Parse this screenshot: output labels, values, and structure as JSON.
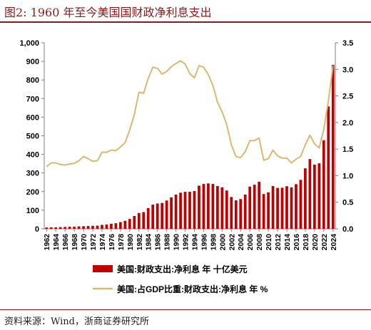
{
  "header": {
    "figure_title": "图2:   1960 年至今美国国财政净利息支出"
  },
  "footer": {
    "source": "资料来源：Wind，浙商证券研究所"
  },
  "colors": {
    "bar": "#c00000",
    "line": "#d9b970",
    "title": "#8b1a1a",
    "axis": "#808080"
  },
  "chart_data": {
    "type": "bar+line",
    "title": "",
    "x": [
      1962,
      1963,
      1964,
      1965,
      1966,
      1967,
      1968,
      1969,
      1970,
      1971,
      1972,
      1973,
      1974,
      1975,
      1976,
      1977,
      1978,
      1979,
      1980,
      1981,
      1982,
      1983,
      1984,
      1985,
      1986,
      1987,
      1988,
      1989,
      1990,
      1991,
      1992,
      1993,
      1994,
      1995,
      1996,
      1997,
      1998,
      1999,
      2000,
      2001,
      2002,
      2003,
      2004,
      2005,
      2006,
      2007,
      2008,
      2009,
      2010,
      2011,
      2012,
      2013,
      2014,
      2015,
      2016,
      2017,
      2018,
      2019,
      2020,
      2021,
      2022,
      2023,
      2024
    ],
    "x_tick_labels": [
      "1962",
      "1964",
      "1966",
      "1968",
      "1970",
      "1972",
      "1974",
      "1976",
      "1978",
      "1980",
      "1982",
      "1984",
      "1986",
      "1988",
      "1990",
      "1992",
      "1994",
      "1996",
      "1998",
      "2000",
      "2002",
      "2004",
      "2006",
      "2008",
      "2010",
      "2012",
      "2014",
      "2016",
      "2018",
      "2020",
      "2022",
      "2024"
    ],
    "series": [
      {
        "name": "美国:财政支出:净利息 年 十亿美元",
        "type": "bar",
        "axis": "left",
        "values": [
          7,
          8,
          8,
          9,
          10,
          11,
          11,
          13,
          14,
          15,
          16,
          17,
          21,
          23,
          27,
          30,
          36,
          43,
          53,
          69,
          85,
          90,
          111,
          130,
          136,
          139,
          152,
          169,
          184,
          194,
          199,
          199,
          203,
          232,
          241,
          244,
          241,
          230,
          223,
          206,
          171,
          153,
          160,
          184,
          227,
          237,
          253,
          187,
          196,
          230,
          220,
          221,
          229,
          223,
          240,
          263,
          325,
          375,
          345,
          352,
          476,
          658,
          881
        ]
      },
      {
        "name": "美国:占GDP比重:财政支出:净利息 年 %",
        "type": "line",
        "axis": "right",
        "values": [
          1.17,
          1.24,
          1.24,
          1.21,
          1.2,
          1.22,
          1.23,
          1.28,
          1.36,
          1.32,
          1.27,
          1.28,
          1.44,
          1.44,
          1.48,
          1.47,
          1.54,
          1.62,
          1.86,
          2.15,
          2.57,
          2.55,
          2.83,
          3.04,
          3.02,
          2.91,
          2.96,
          3.05,
          3.11,
          3.16,
          3.1,
          2.92,
          2.84,
          3.07,
          3.04,
          2.9,
          2.7,
          2.38,
          2.2,
          1.96,
          1.58,
          1.36,
          1.34,
          1.45,
          1.66,
          1.66,
          1.71,
          1.29,
          1.32,
          1.48,
          1.37,
          1.33,
          1.33,
          1.24,
          1.31,
          1.36,
          1.58,
          1.76,
          1.6,
          1.52,
          1.87,
          2.41,
          3.07
        ]
      }
    ],
    "left_axis": {
      "min": 0,
      "max": 1000,
      "ticks": [
        0,
        100,
        200,
        300,
        400,
        500,
        600,
        700,
        800,
        900,
        1000
      ],
      "tick_labels": [
        "0",
        "100",
        "200",
        "300",
        "400",
        "500",
        "600",
        "700",
        "800",
        "900",
        "1,000"
      ]
    },
    "right_axis": {
      "min": 0,
      "max": 3.5,
      "ticks": [
        0,
        0.5,
        1,
        1.5,
        2,
        2.5,
        3,
        3.5
      ],
      "tick_labels": [
        "0.0",
        "0.5",
        "1.0",
        "1.5",
        "2.0",
        "2.5",
        "3.0",
        "3.5"
      ]
    },
    "grid": false,
    "legend_position": "bottom"
  }
}
